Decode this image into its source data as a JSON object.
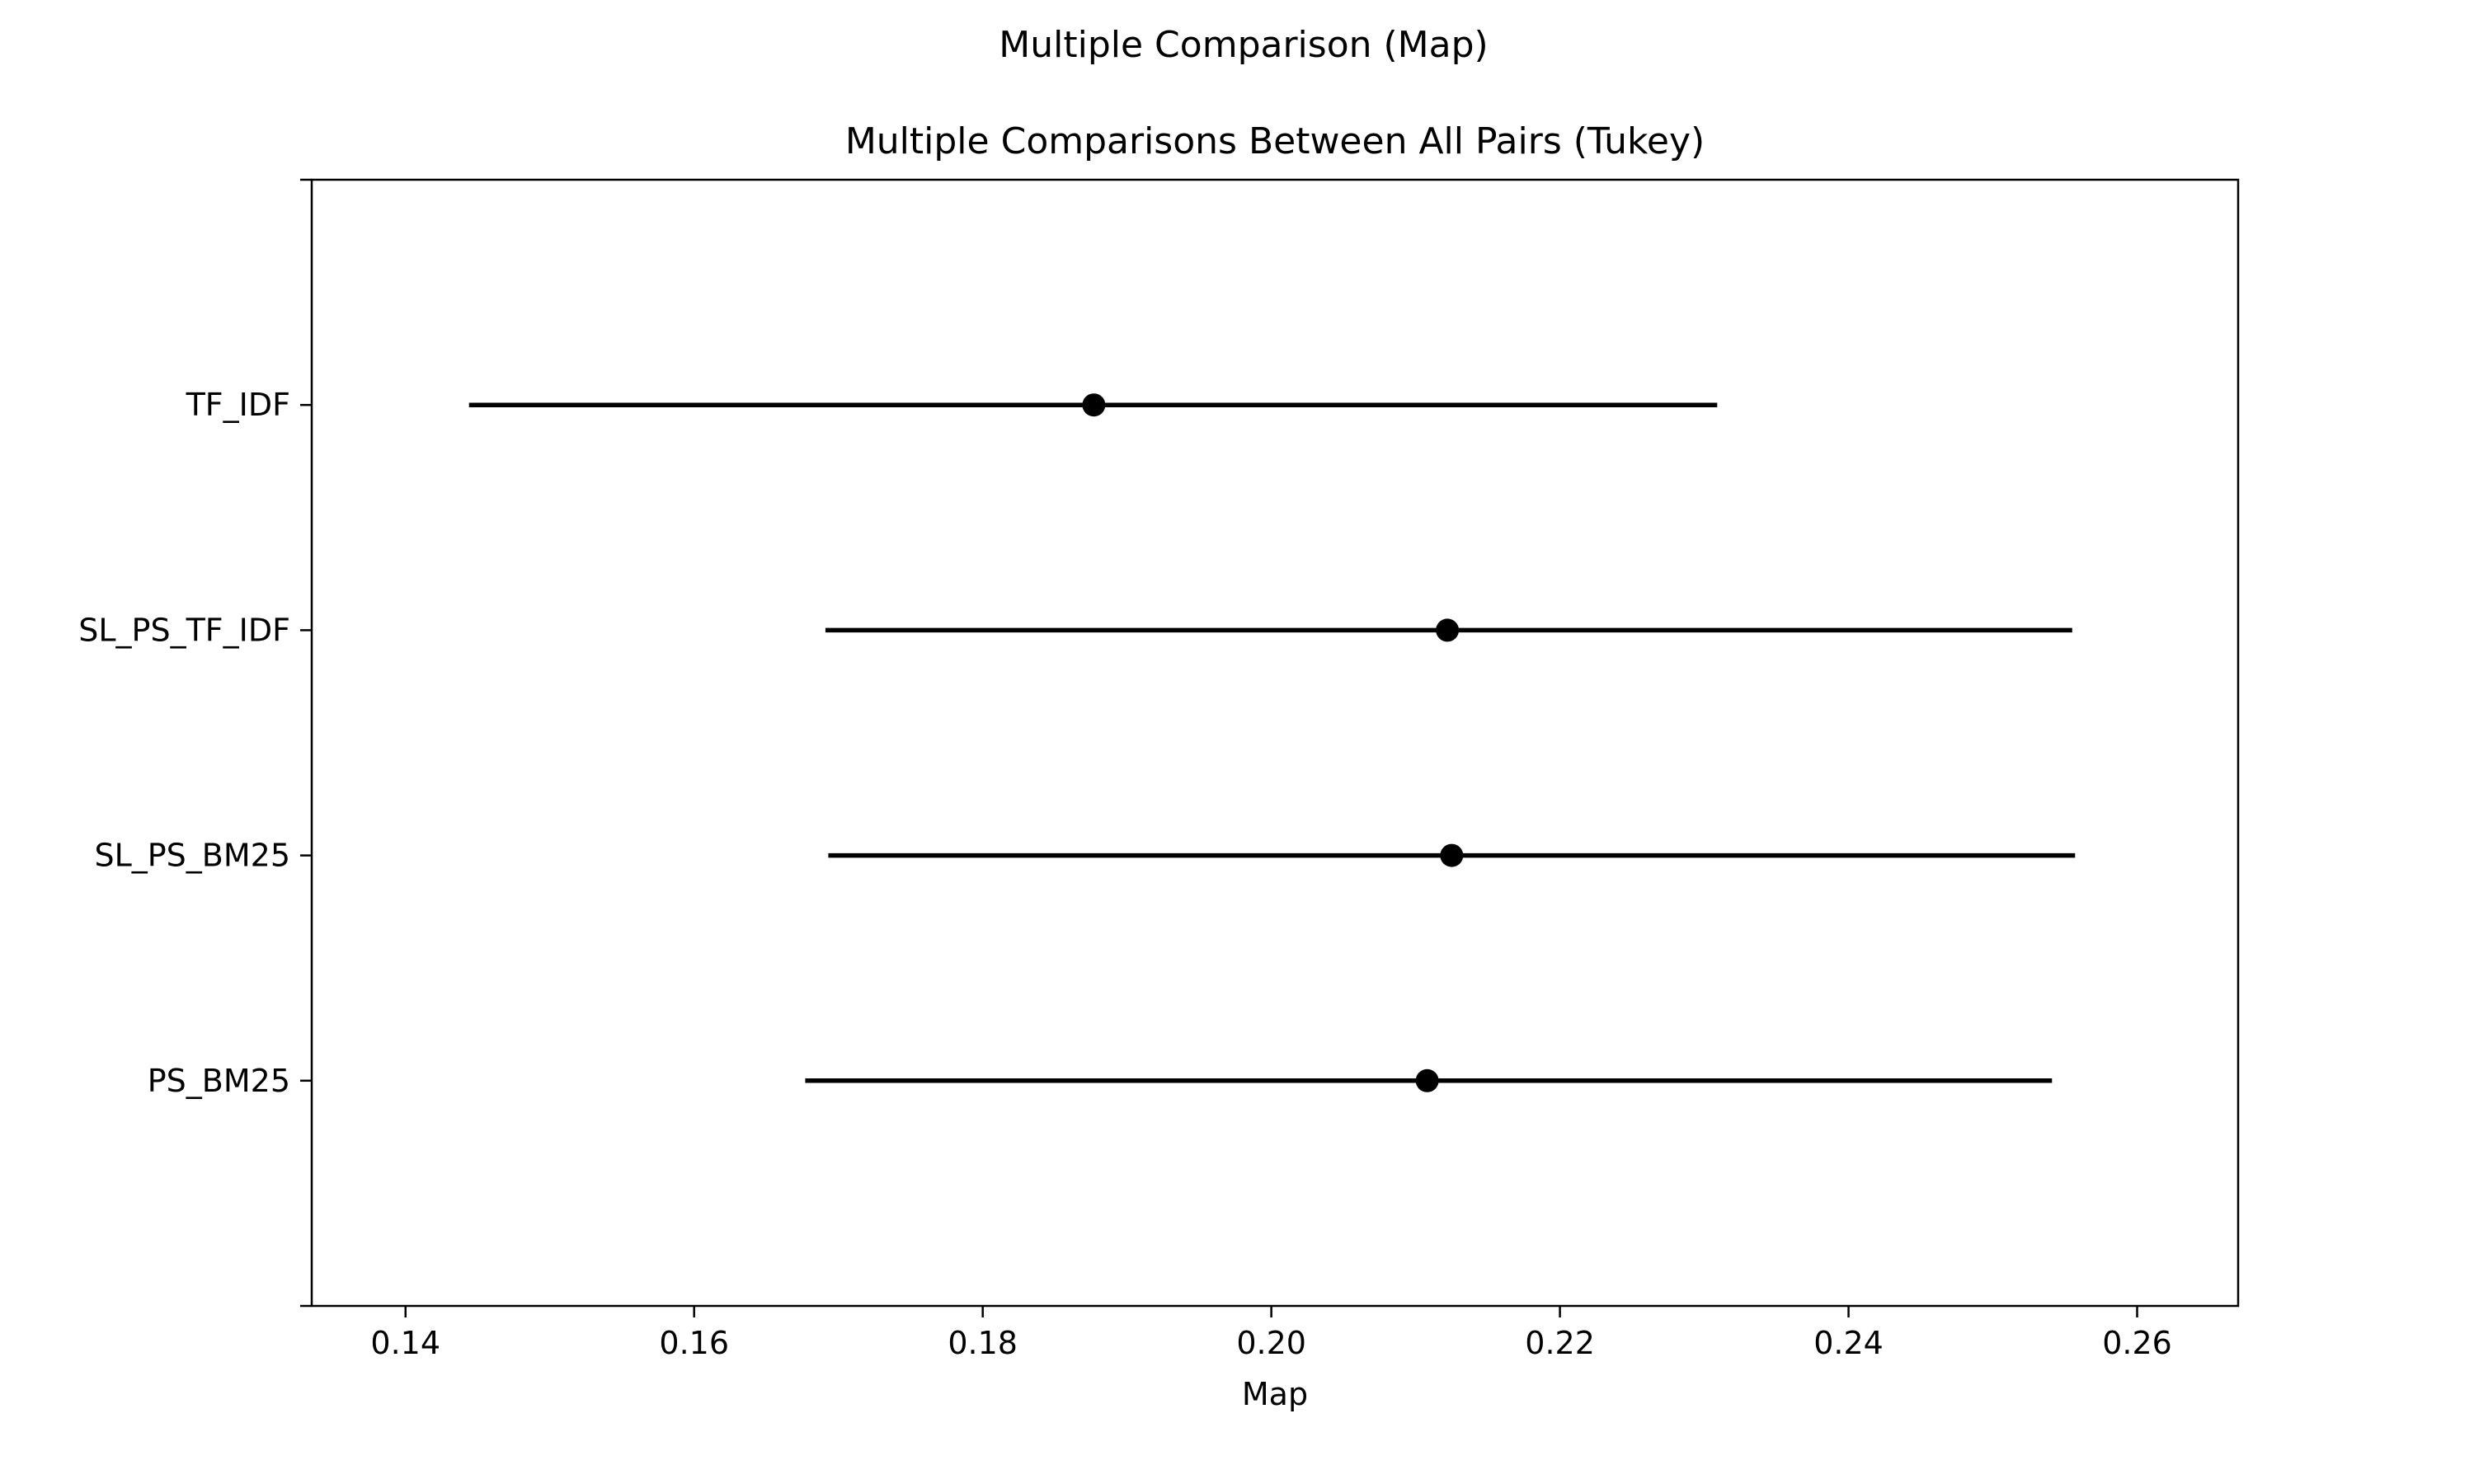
{
  "figure": {
    "suptitle": "Multiple Comparison (Map)"
  },
  "chart_data": {
    "type": "errorbar",
    "title": "Multiple Comparisons Between All Pairs (Tukey)",
    "xlabel": "Map",
    "ylabel": "",
    "xlim": [
      0.1335,
      0.267
    ],
    "xticks": [
      0.14,
      0.16,
      0.18,
      0.2,
      0.22,
      0.24,
      0.26
    ],
    "xtick_labels": [
      "0.14",
      "0.16",
      "0.18",
      "0.20",
      "0.22",
      "0.24",
      "0.26"
    ],
    "grid": false,
    "categories": [
      "TF_IDF",
      "SL_PS_TF_IDF",
      "SL_PS_BM25",
      "PS_BM25"
    ],
    "means": [
      0.1877,
      0.2122,
      0.2125,
      0.2108
    ],
    "lower": [
      0.1444,
      0.1691,
      0.1693,
      0.1677
    ],
    "upper": [
      0.2309,
      0.2555,
      0.2557,
      0.2541
    ],
    "color": "#000000"
  }
}
